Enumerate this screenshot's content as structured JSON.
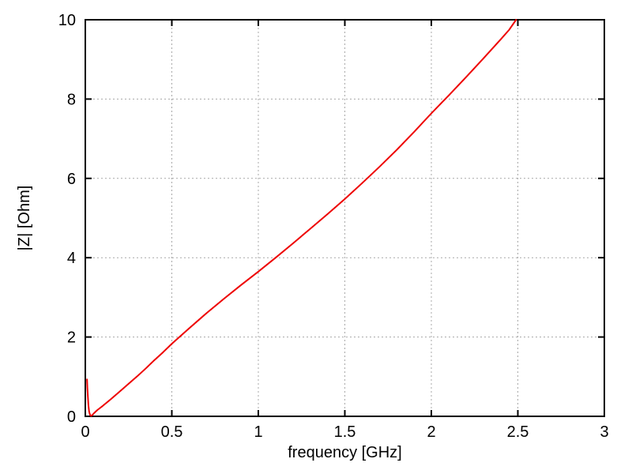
{
  "window": {
    "background_color": "#ffffff"
  },
  "chart_data": {
    "type": "line",
    "title": "",
    "xlabel": "frequency [GHz]",
    "ylabel": "|Z| [Ohm]",
    "xlim": [
      0,
      3
    ],
    "ylim": [
      0,
      10
    ],
    "xticks": [
      0,
      0.5,
      1,
      1.5,
      2,
      2.5,
      3
    ],
    "xtick_labels": [
      "0",
      "0.5",
      "1",
      "1.5",
      "2",
      "2.5",
      "3"
    ],
    "yticks": [
      0,
      2,
      4,
      6,
      8,
      10
    ],
    "ytick_labels": [
      "0",
      "2",
      "4",
      "6",
      "8",
      "10"
    ],
    "grid": true,
    "grid_style": "dashed",
    "legend": "none",
    "styles": {
      "line_color": "#ee0000",
      "grid_color": "#a8a8a8",
      "border_color": "#000000",
      "text_color": "#000000"
    },
    "series": [
      {
        "points": [
          [
            0.01,
            0.93
          ],
          [
            0.012,
            0.72
          ],
          [
            0.015,
            0.48
          ],
          [
            0.018,
            0.28
          ],
          [
            0.022,
            0.12
          ],
          [
            0.027,
            0.04
          ],
          [
            0.033,
            0.01
          ],
          [
            0.04,
            0.03
          ],
          [
            0.05,
            0.08
          ],
          [
            0.07,
            0.16
          ],
          [
            0.1,
            0.26
          ],
          [
            0.15,
            0.44
          ],
          [
            0.2,
            0.63
          ],
          [
            0.25,
            0.82
          ],
          [
            0.3,
            1.01
          ],
          [
            0.35,
            1.21
          ],
          [
            0.4,
            1.42
          ],
          [
            0.45,
            1.62
          ],
          [
            0.5,
            1.83
          ],
          [
            0.6,
            2.22
          ],
          [
            0.7,
            2.6
          ],
          [
            0.8,
            2.96
          ],
          [
            0.9,
            3.31
          ],
          [
            1.0,
            3.65
          ],
          [
            1.1,
            4.0
          ],
          [
            1.2,
            4.36
          ],
          [
            1.3,
            4.73
          ],
          [
            1.4,
            5.1
          ],
          [
            1.5,
            5.48
          ],
          [
            1.6,
            5.88
          ],
          [
            1.7,
            6.29
          ],
          [
            1.8,
            6.72
          ],
          [
            1.9,
            7.17
          ],
          [
            2.0,
            7.64
          ],
          [
            2.1,
            8.09
          ],
          [
            2.2,
            8.55
          ],
          [
            2.3,
            9.02
          ],
          [
            2.4,
            9.5
          ],
          [
            2.45,
            9.75
          ],
          [
            2.49,
            10.0
          ]
        ]
      }
    ]
  }
}
